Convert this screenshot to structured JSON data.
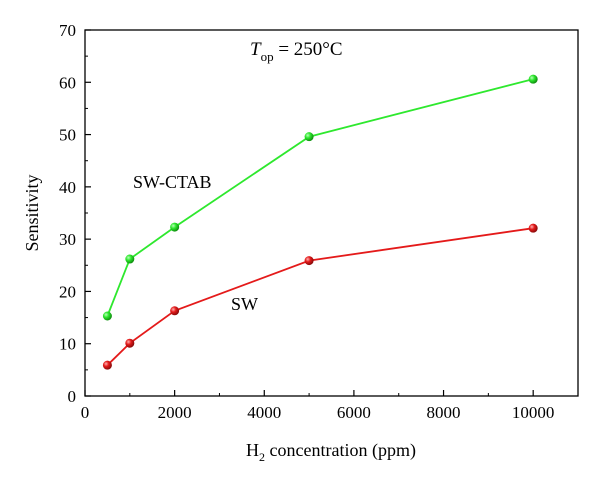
{
  "chart_data": {
    "type": "line",
    "xlabel": {
      "prefix": "H",
      "subscript": "2",
      "suffix": " concentration (ppm)"
    },
    "ylabel": "Sensitivity",
    "xlim": [
      0,
      11000
    ],
    "ylim": [
      0,
      70
    ],
    "x_ticks": [
      0,
      2000,
      4000,
      6000,
      8000,
      10000
    ],
    "y_ticks": [
      0,
      10,
      20,
      30,
      40,
      50,
      60,
      70
    ],
    "grid": false,
    "annotation": {
      "symbol": "T",
      "subscript": "op",
      "suffix": " = 250°C"
    },
    "series": [
      {
        "name": "SW-CTAB",
        "color": "#2ee82e",
        "x": [
          500,
          1000,
          2000,
          5000,
          10000
        ],
        "y": [
          15.3,
          26.2,
          32.3,
          49.6,
          60.6
        ]
      },
      {
        "name": "SW",
        "color": "#e41a1a",
        "x": [
          500,
          1000,
          2000,
          5000,
          10000
        ],
        "y": [
          5.9,
          10.1,
          16.3,
          25.9,
          32.1
        ]
      }
    ]
  }
}
